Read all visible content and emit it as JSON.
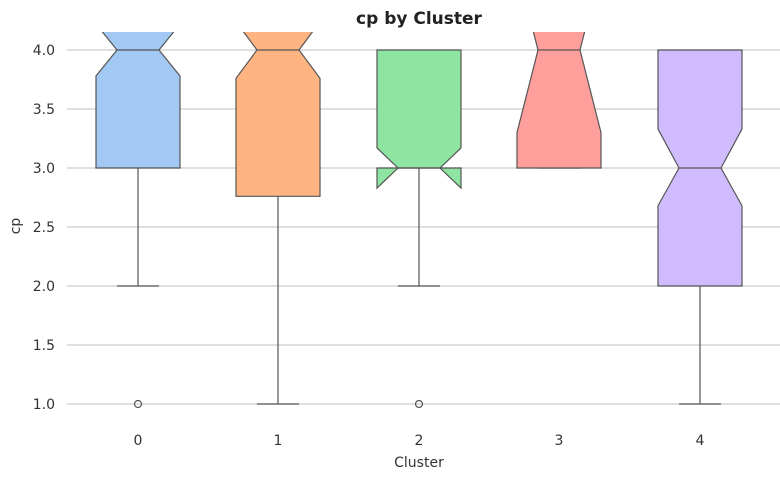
{
  "chart_data": {
    "type": "boxplot",
    "title": "cp by Cluster",
    "xlabel": "Cluster",
    "ylabel": "cp",
    "notched": true,
    "ylim": [
      0.85,
      4.15
    ],
    "yticks": [
      "1.0",
      "1.5",
      "2.0",
      "2.5",
      "3.0",
      "3.5",
      "4.0"
    ],
    "grid": "horizontal",
    "categories": [
      "0",
      "1",
      "2",
      "3",
      "4"
    ],
    "boxes": [
      {
        "cluster": "0",
        "whisker_low": 2.0,
        "q1": 3.0,
        "median": 4.0,
        "q3": 4.3,
        "whisker_high": 4.3,
        "notch_low": 3.78,
        "notch_high": 4.22,
        "outliers": [
          1.0
        ],
        "color": "#a1c9f4"
      },
      {
        "cluster": "1",
        "whisker_low": 1.0,
        "q1": 2.76,
        "median": 4.0,
        "q3": 4.3,
        "whisker_high": 4.3,
        "notch_low": 3.76,
        "notch_high": 4.24,
        "outliers": [],
        "color": "#ffb482"
      },
      {
        "cluster": "2",
        "whisker_low": 2.0,
        "q1": 3.0,
        "median": 3.0,
        "q3": 4.0,
        "whisker_high": 4.0,
        "notch_low": 2.83,
        "notch_high": 3.17,
        "outliers": [
          1.0
        ],
        "color": "#8de5a1"
      },
      {
        "cluster": "3",
        "whisker_low": 3.0,
        "q1": 3.0,
        "median": 4.0,
        "q3": 4.3,
        "whisker_high": 4.3,
        "notch_low": 3.3,
        "notch_high": 4.7,
        "outliers": [],
        "color": "#ff9f9b"
      },
      {
        "cluster": "4",
        "whisker_low": 1.0,
        "q1": 2.0,
        "median": 3.0,
        "q3": 4.0,
        "whisker_high": 4.0,
        "notch_low": 2.68,
        "notch_high": 3.33,
        "outliers": [],
        "color": "#d0bbff"
      }
    ]
  }
}
